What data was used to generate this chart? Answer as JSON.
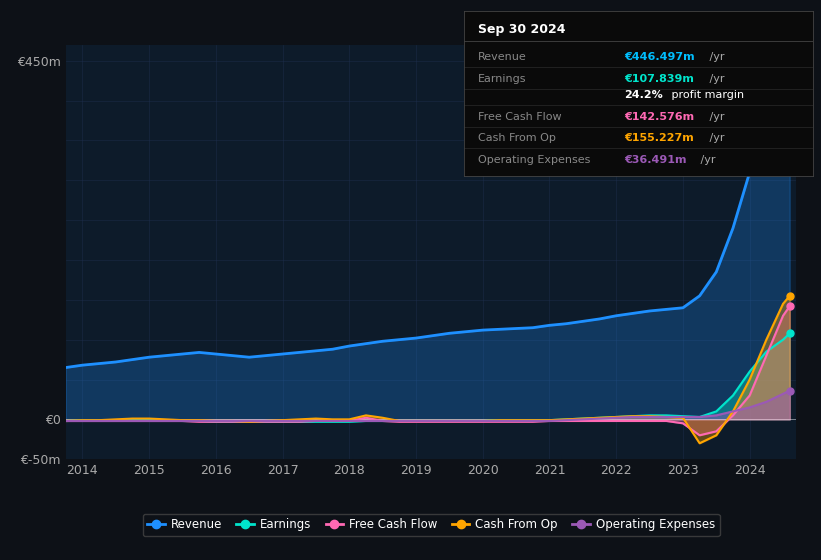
{
  "bg_color": "#0d1117",
  "plot_bg_color": "#0d1b2a",
  "grid_color": "#1e3050",
  "title_box": {
    "date": "Sep 30 2024",
    "rows": [
      {
        "label": "Revenue",
        "value": "€446.497m /yr",
        "value_color": "#00bfff"
      },
      {
        "label": "Earnings",
        "value": "€107.839m /yr",
        "value_color": "#00e5cc"
      },
      {
        "label": "",
        "value": "24.2% profit margin",
        "value_color": "#ffffff"
      },
      {
        "label": "Free Cash Flow",
        "value": "€142.576m /yr",
        "value_color": "#ff69b4"
      },
      {
        "label": "Cash From Op",
        "value": "€155.227m /yr",
        "value_color": "#ffa500"
      },
      {
        "label": "Operating Expenses",
        "value": "€36.491m /yr",
        "value_color": "#9b59b6"
      }
    ]
  },
  "years": [
    2013.75,
    2014.0,
    2014.25,
    2014.5,
    2014.75,
    2015.0,
    2015.25,
    2015.5,
    2015.75,
    2016.0,
    2016.25,
    2016.5,
    2016.75,
    2017.0,
    2017.25,
    2017.5,
    2017.75,
    2018.0,
    2018.25,
    2018.5,
    2018.75,
    2019.0,
    2019.25,
    2019.5,
    2019.75,
    2020.0,
    2020.25,
    2020.5,
    2020.75,
    2021.0,
    2021.25,
    2021.5,
    2021.75,
    2022.0,
    2022.25,
    2022.5,
    2022.75,
    2023.0,
    2023.25,
    2023.5,
    2023.75,
    2024.0,
    2024.25,
    2024.5,
    2024.6
  ],
  "revenue": [
    65,
    68,
    70,
    72,
    75,
    78,
    80,
    82,
    84,
    82,
    80,
    78,
    80,
    82,
    84,
    86,
    88,
    92,
    95,
    98,
    100,
    102,
    105,
    108,
    110,
    112,
    113,
    114,
    115,
    118,
    120,
    123,
    126,
    130,
    133,
    136,
    138,
    140,
    155,
    185,
    240,
    310,
    380,
    430,
    446
  ],
  "earnings": [
    -2,
    -1,
    -1,
    -1,
    -1,
    -1,
    -1,
    -2,
    -2,
    -3,
    -3,
    -3,
    -3,
    -3,
    -3,
    -3,
    -3,
    -3,
    -2,
    -2,
    -2,
    -2,
    -2,
    -2,
    -2,
    -2,
    -1,
    -1,
    -1,
    -1,
    0,
    1,
    2,
    3,
    4,
    5,
    5,
    4,
    3,
    10,
    30,
    60,
    85,
    100,
    108
  ],
  "free_cash_flow": [
    -2,
    -2,
    -2,
    -2,
    -2,
    -2,
    -2,
    -2,
    -3,
    -3,
    -3,
    -3,
    -3,
    -3,
    -3,
    -2,
    -2,
    -2,
    2,
    -2,
    -3,
    -3,
    -3,
    -3,
    -3,
    -3,
    -3,
    -3,
    -3,
    -2,
    -2,
    -2,
    -2,
    -2,
    -2,
    -2,
    -2,
    -5,
    -20,
    -15,
    5,
    30,
    80,
    130,
    142
  ],
  "cash_from_op": [
    -2,
    -1,
    -1,
    0,
    1,
    1,
    0,
    -1,
    -1,
    -2,
    -2,
    -3,
    -2,
    -1,
    0,
    1,
    0,
    0,
    5,
    2,
    -2,
    -2,
    -2,
    -2,
    -2,
    -2,
    -1,
    -1,
    -1,
    -1,
    0,
    1,
    2,
    3,
    4,
    4,
    3,
    2,
    -30,
    -20,
    10,
    50,
    100,
    145,
    155
  ],
  "op_expenses": [
    -2,
    -2,
    -2,
    -2,
    -2,
    -2,
    -2,
    -2,
    -2,
    -2,
    -2,
    -2,
    -2,
    -2,
    -2,
    -2,
    -2,
    -2,
    -2,
    -2,
    -2,
    -2,
    -2,
    -2,
    -2,
    -2,
    -2,
    -2,
    -2,
    -2,
    -1,
    0,
    1,
    2,
    3,
    3,
    3,
    3,
    3,
    5,
    10,
    15,
    22,
    32,
    36
  ],
  "ylim": [
    -50,
    470
  ],
  "xlim": [
    2013.75,
    2024.7
  ],
  "yticks": [
    -50,
    0,
    50,
    100,
    150,
    200,
    250,
    300,
    350,
    400,
    450
  ],
  "ytick_labels": [
    "€-50m",
    "€0",
    "",
    "",
    "",
    "",
    "",
    "",
    "",
    "",
    "€450m"
  ],
  "xticks": [
    2014,
    2015,
    2016,
    2017,
    2018,
    2019,
    2020,
    2021,
    2022,
    2023,
    2024
  ],
  "colors": {
    "revenue": "#1e90ff",
    "earnings": "#00e5cc",
    "free_cash_flow": "#ff69b4",
    "cash_from_op": "#ffa500",
    "op_expenses": "#9b59b6"
  },
  "legend_items": [
    {
      "label": "Revenue",
      "color": "#1e90ff"
    },
    {
      "label": "Earnings",
      "color": "#00e5cc"
    },
    {
      "label": "Free Cash Flow",
      "color": "#ff69b4"
    },
    {
      "label": "Cash From Op",
      "color": "#ffa500"
    },
    {
      "label": "Operating Expenses",
      "color": "#9b59b6"
    }
  ]
}
